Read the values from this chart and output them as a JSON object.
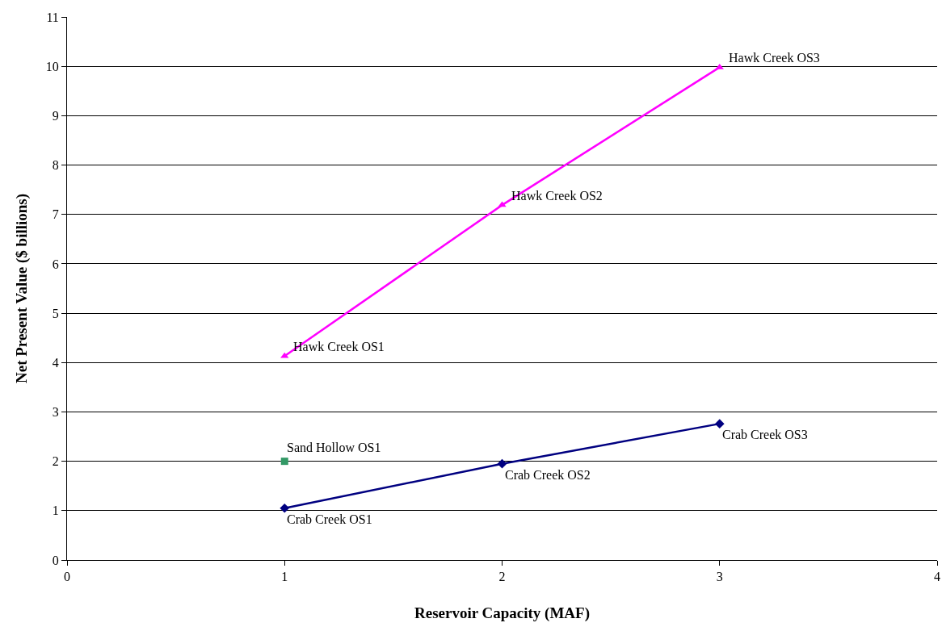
{
  "chart_data": {
    "type": "line",
    "xlabel": "Reservoir Capacity (MAF)",
    "ylabel": "Net Present Value ($ billions)",
    "xlim": [
      0,
      4
    ],
    "xticks": [
      0,
      1,
      2,
      3,
      4
    ],
    "ylim": [
      0,
      11
    ],
    "yticks": [
      0,
      1,
      2,
      3,
      4,
      5,
      6,
      7,
      8,
      9,
      10,
      11
    ],
    "grid": "y",
    "series": [
      {
        "marker": "triangle",
        "color": "#ff00ff",
        "x": [
          1,
          2,
          3
        ],
        "values": [
          4.13,
          7.19,
          9.98
        ]
      },
      {
        "marker": "diamond",
        "color": "#000080",
        "x": [
          1,
          2,
          3
        ],
        "values": [
          1.05,
          1.95,
          2.76
        ]
      },
      {
        "type": "scatter",
        "marker": "square",
        "color": "#339966",
        "x": [
          1
        ],
        "values": [
          2.0
        ]
      }
    ],
    "annotations": [
      {
        "text": "Hawk Creek OS1",
        "x": 1,
        "y": 4.13
      },
      {
        "text": "Hawk Creek OS2",
        "x": 2,
        "y": 7.19
      },
      {
        "text": "Hawk Creek OS3",
        "x": 3,
        "y": 9.98
      },
      {
        "text": "Crab Creek OS1",
        "x": 1,
        "y": 1.05
      },
      {
        "text": "Crab Creek OS2",
        "x": 2,
        "y": 1.95
      },
      {
        "text": "Crab Creek OS3",
        "x": 3,
        "y": 2.76
      },
      {
        "text": "Sand Hollow OS1",
        "x": 1,
        "y": 2.0
      }
    ]
  }
}
